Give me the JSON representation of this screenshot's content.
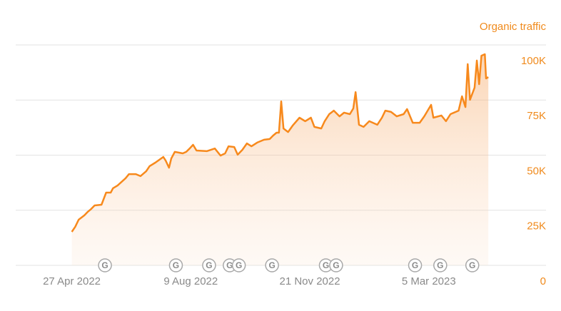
{
  "chart_data": {
    "type": "area",
    "title": "Organic traffic",
    "x": [
      "2022-04-27",
      "2022-04-30",
      "2022-05-03",
      "2022-05-08",
      "2022-05-11",
      "2022-05-14",
      "2022-05-17",
      "2022-05-23",
      "2022-05-27",
      "2022-05-31",
      "2022-06-02",
      "2022-06-06",
      "2022-06-13",
      "2022-06-16",
      "2022-06-22",
      "2022-06-26",
      "2022-07-01",
      "2022-07-04",
      "2022-07-09",
      "2022-07-16",
      "2022-07-18",
      "2022-07-21",
      "2022-07-23",
      "2022-07-26",
      "2022-08-02",
      "2022-08-05",
      "2022-08-08",
      "2022-08-11",
      "2022-08-14",
      "2022-08-23",
      "2022-08-30",
      "2022-09-04",
      "2022-09-08",
      "2022-09-11",
      "2022-09-16",
      "2022-09-19",
      "2022-09-23",
      "2022-09-27",
      "2022-10-01",
      "2022-10-06",
      "2022-10-12",
      "2022-10-17",
      "2022-10-20",
      "2022-10-23",
      "2022-10-25",
      "2022-10-27",
      "2022-10-29",
      "2022-11-02",
      "2022-11-06",
      "2022-11-12",
      "2022-11-17",
      "2022-11-22",
      "2022-11-25",
      "2022-12-01",
      "2022-12-04",
      "2022-12-08",
      "2022-12-12",
      "2022-12-17",
      "2022-12-21",
      "2022-12-26",
      "2022-12-29",
      "2022-12-31",
      "2023-01-03",
      "2023-01-07",
      "2023-01-12",
      "2023-01-19",
      "2023-01-23",
      "2023-01-26",
      "2023-01-31",
      "2023-02-05",
      "2023-02-11",
      "2023-02-14",
      "2023-02-19",
      "2023-02-25",
      "2023-03-01",
      "2023-03-07",
      "2023-03-09",
      "2023-03-16",
      "2023-03-20",
      "2023-03-24",
      "2023-03-31",
      "2023-04-03",
      "2023-04-06",
      "2023-04-08",
      "2023-04-10",
      "2023-04-14",
      "2023-04-16",
      "2023-04-18",
      "2023-04-20",
      "2023-04-23",
      "2023-04-24",
      "2023-04-26"
    ],
    "series": [
      {
        "name": "Organic traffic",
        "color": "#f7891c",
        "values": [
          15200,
          17500,
          20700,
          22700,
          24300,
          25600,
          27200,
          27500,
          33000,
          33000,
          35000,
          36200,
          39500,
          41400,
          41400,
          40500,
          42700,
          45000,
          46600,
          49200,
          47600,
          44300,
          48500,
          51500,
          50800,
          51500,
          53000,
          54700,
          52100,
          51800,
          53000,
          49800,
          50800,
          54000,
          53700,
          50200,
          52400,
          55300,
          54000,
          55700,
          57000,
          57300,
          58900,
          60200,
          60200,
          74400,
          62100,
          60500,
          63400,
          67000,
          65400,
          67000,
          62800,
          62100,
          65400,
          68600,
          70200,
          67600,
          69300,
          68600,
          71200,
          78600,
          63800,
          62800,
          65400,
          63800,
          67000,
          70200,
          69600,
          67600,
          68600,
          70900,
          64700,
          64700,
          67600,
          72800,
          67000,
          68000,
          65400,
          68600,
          70200,
          76700,
          71800,
          91300,
          75100,
          80600,
          92900,
          82200,
          95100,
          95800,
          84800,
          85400
        ]
      }
    ],
    "xlim": [
      "2022-03-09",
      "2023-05-09"
    ],
    "xticks": [
      {
        "value": "2022-04-27",
        "label": "27 Apr 2022"
      },
      {
        "value": "2022-08-09",
        "label": "9 Aug 2022"
      },
      {
        "value": "2022-11-21",
        "label": "21 Nov 2022"
      },
      {
        "value": "2023-03-05",
        "label": "5 Mar 2023"
      }
    ],
    "ylim": [
      0,
      100000
    ],
    "yticks": [
      0,
      {
        "value": 25000,
        "label": "25K"
      },
      {
        "value": 50000,
        "label": "50K"
      },
      {
        "value": 75000,
        "label": "75K"
      },
      {
        "value": 100000,
        "label": "100K"
      }
    ],
    "grid": true,
    "annotations": [
      {
        "date": "2022-05-26",
        "label": "G"
      },
      {
        "date": "2022-07-27",
        "label": "G"
      },
      {
        "date": "2022-08-25",
        "label": "G"
      },
      {
        "date": "2022-09-12",
        "label": "G"
      },
      {
        "date": "2022-09-20",
        "label": "G"
      },
      {
        "date": "2022-10-19",
        "label": "G"
      },
      {
        "date": "2022-12-05",
        "label": "G"
      },
      {
        "date": "2022-12-14",
        "label": "G"
      },
      {
        "date": "2023-02-21",
        "label": "G"
      },
      {
        "date": "2023-03-15",
        "label": "G"
      },
      {
        "date": "2023-04-12",
        "label": "G"
      }
    ]
  }
}
